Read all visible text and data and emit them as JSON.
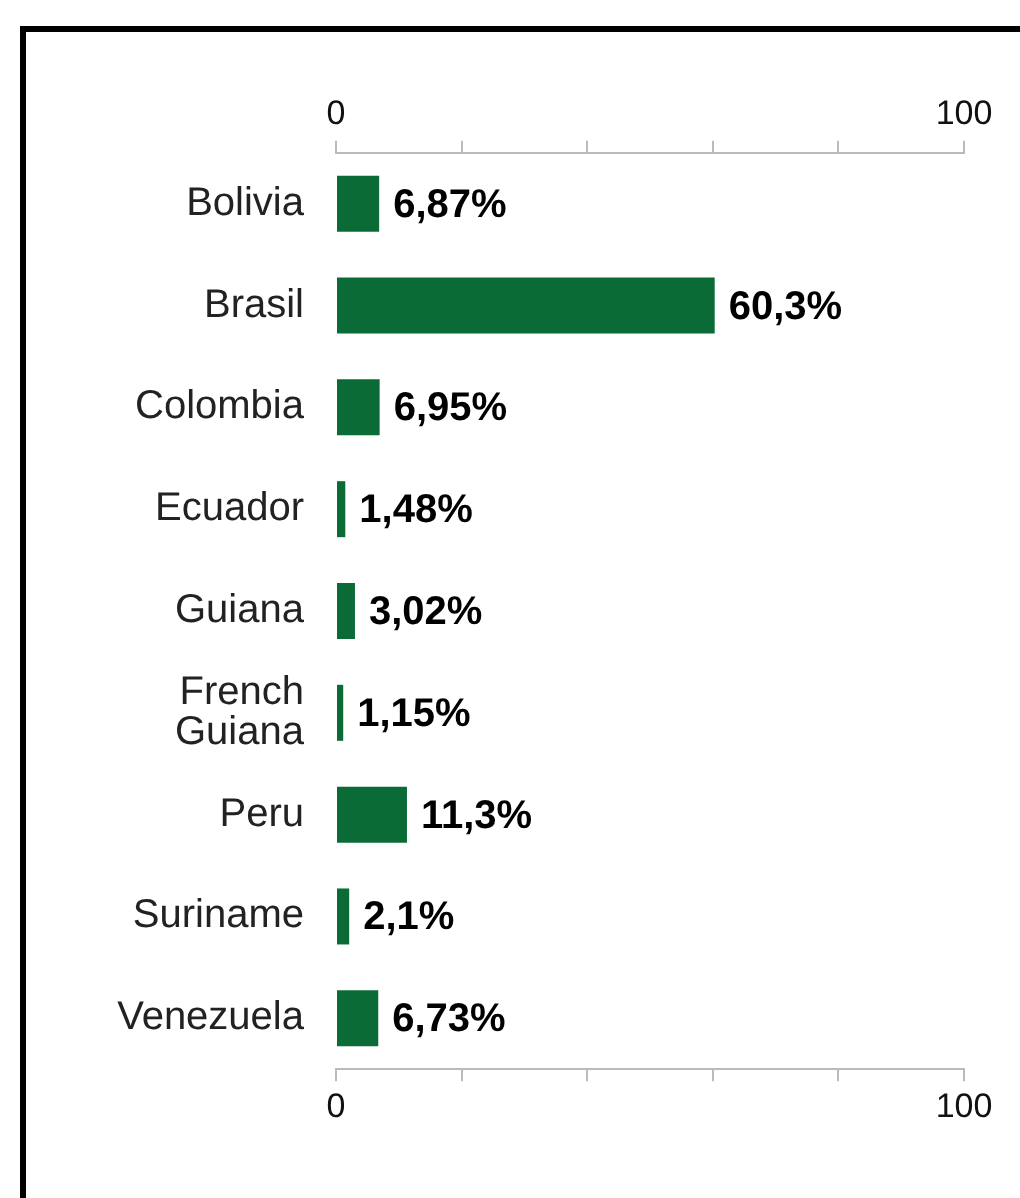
{
  "chart_data": {
    "type": "bar",
    "orientation": "horizontal",
    "categories": [
      "Bolivia",
      "Brasil",
      "Colombia",
      "Ecuador",
      "Guiana",
      "French\nGuiana",
      "Peru",
      "Suriname",
      "Venezuela"
    ],
    "values": [
      6.87,
      60.3,
      6.95,
      1.48,
      3.02,
      1.15,
      11.3,
      2.1,
      6.73
    ],
    "value_labels": [
      "6,87%",
      "60,3%",
      "6,95%",
      "1,48%",
      "3,02%",
      "1,15%",
      "11,3%",
      "2,1%",
      "6,73%"
    ],
    "color": "#0b6b37",
    "xlim": [
      0,
      100
    ],
    "xticks": [
      0,
      {
        "value": 20,
        "label": null
      },
      {
        "value": 40,
        "label": null
      },
      {
        "value": 60,
        "label": null
      },
      {
        "value": 80,
        "label": null
      },
      100
    ],
    "x2lim": [
      0,
      100
    ],
    "x2ticks": [
      0,
      {
        "value": 20,
        "label": null
      },
      {
        "value": 40,
        "label": null
      },
      {
        "value": 60,
        "label": null
      },
      {
        "value": 80,
        "label": null
      },
      100
    ],
    "grid": false,
    "legend": false
  }
}
